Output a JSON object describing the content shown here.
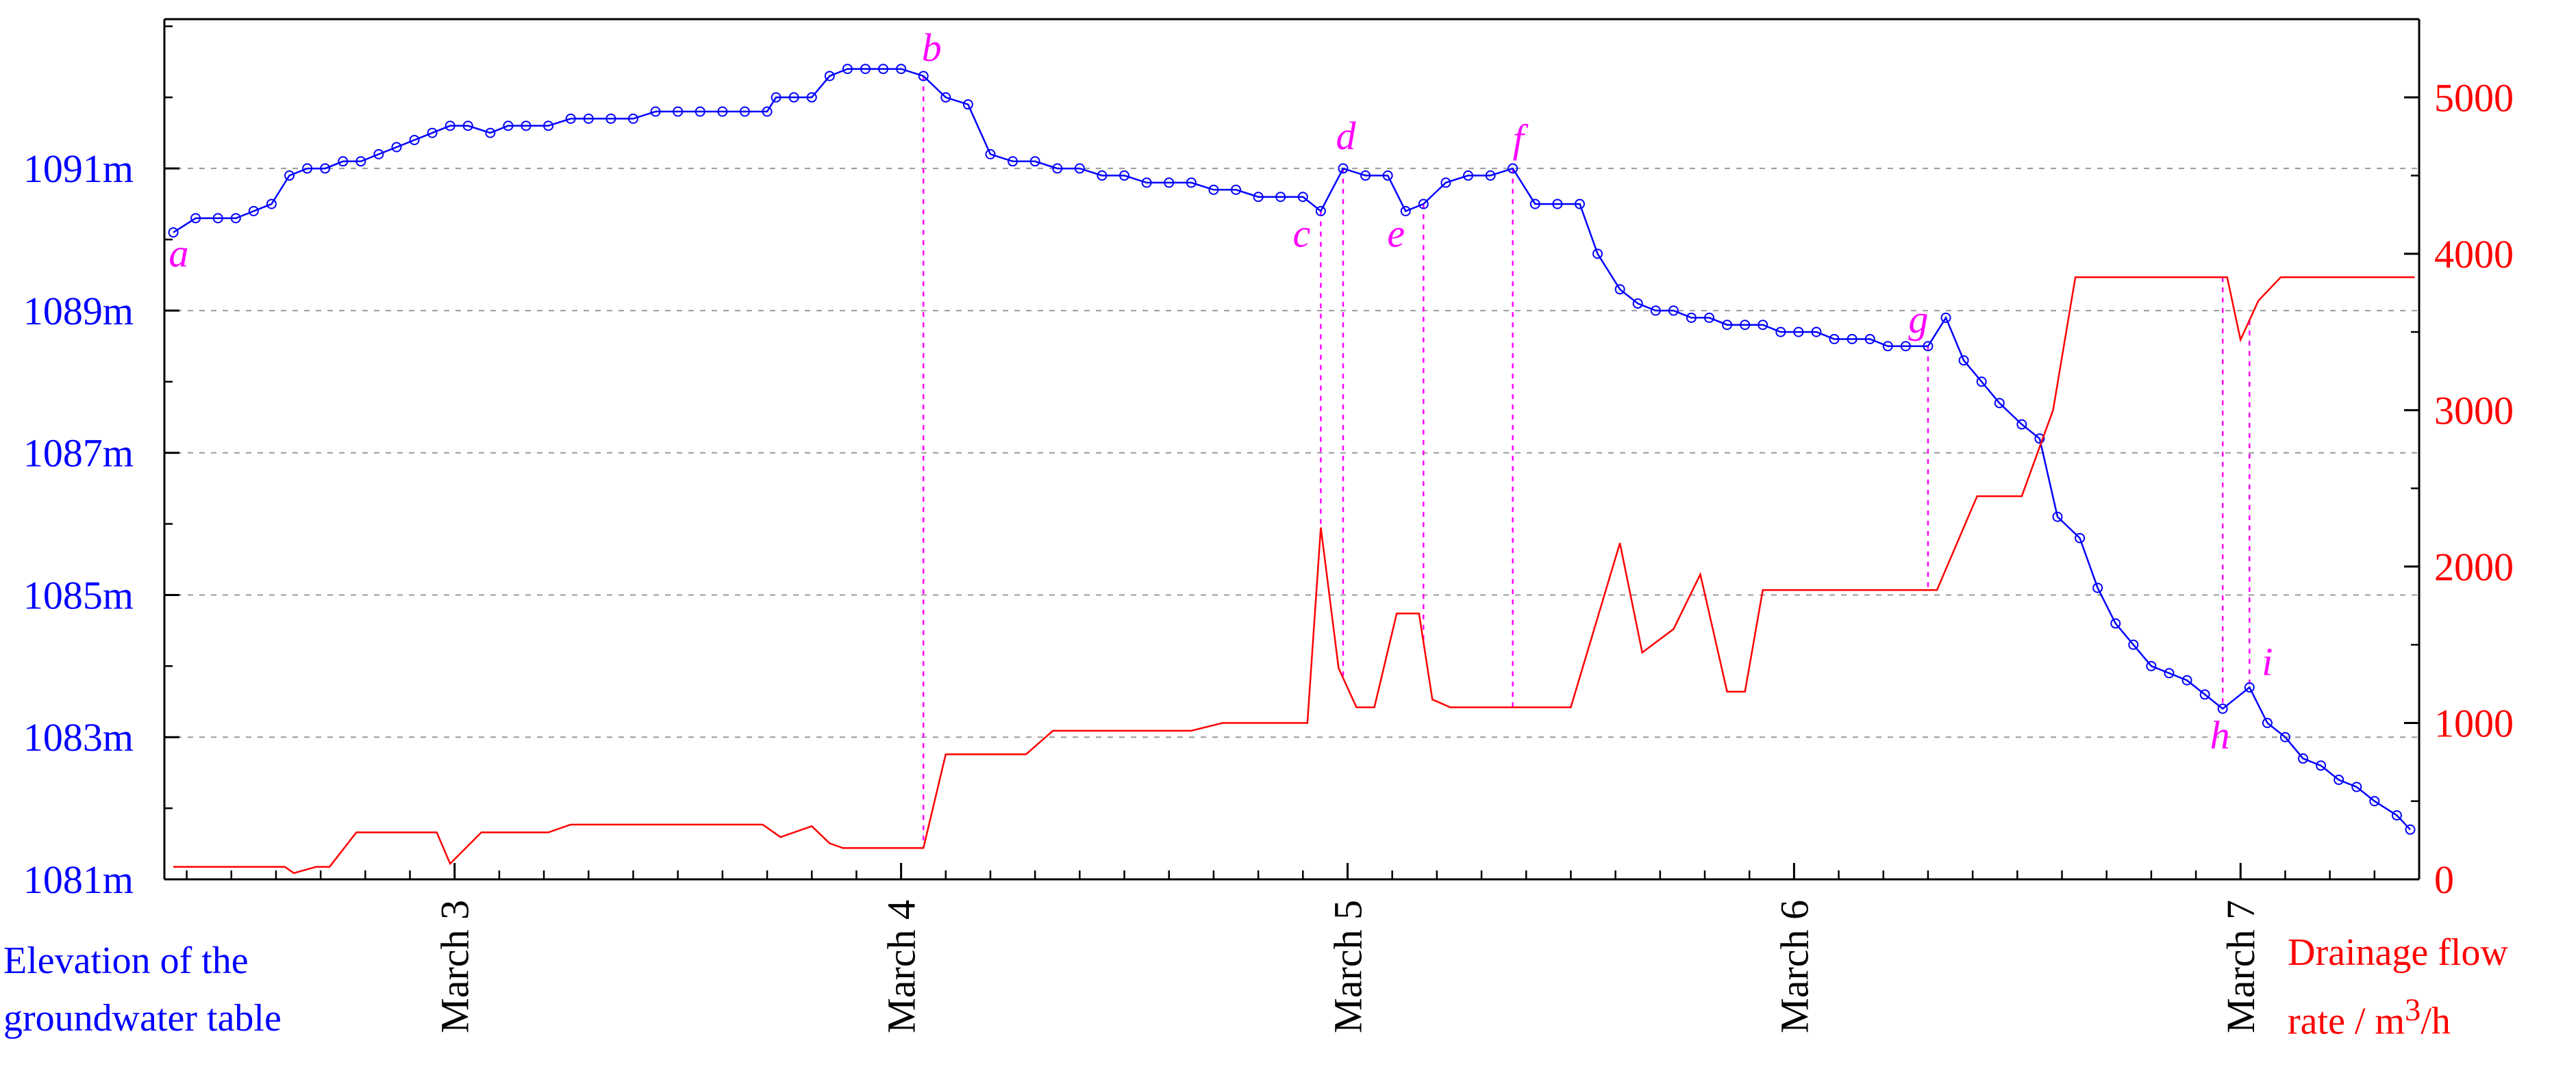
{
  "chart_data": {
    "type": "line",
    "x_axis": {
      "ticks": [
        "March 3",
        "March 4",
        "March 5",
        "March 6",
        "March 7"
      ],
      "tick_values": [
        3,
        4,
        5,
        6,
        7
      ],
      "range": [
        2.35,
        7.4
      ]
    },
    "y_left": {
      "title_lines": [
        "Elevation of the",
        "groundwater table"
      ],
      "ticks": [
        "1081m",
        "1083m",
        "1085m",
        "1087m",
        "1089m",
        "1091m"
      ],
      "tick_values": [
        1081,
        1083,
        1085,
        1087,
        1089,
        1091
      ],
      "range": [
        1081,
        1093.1
      ],
      "color": "#0000ff"
    },
    "y_right": {
      "title_html": "Drainage flow<br>rate / m<sup>3</sup>/h",
      "ticks": [
        "0",
        "1000",
        "2000",
        "3000",
        "4000",
        "5000"
      ],
      "tick_values": [
        0,
        1000,
        2000,
        3000,
        4000,
        5000
      ],
      "range": [
        0,
        5500
      ],
      "color": "#ff0000"
    },
    "grid": {
      "horizontal": true,
      "style": "dashed",
      "at_left_values": [
        1083,
        1085,
        1087,
        1089,
        1091
      ]
    },
    "series": [
      {
        "axis": "left",
        "color": "#0000ff",
        "marker": "circle",
        "points": [
          [
            2.37,
            1090.1
          ],
          [
            2.42,
            1090.3
          ],
          [
            2.47,
            1090.3
          ],
          [
            2.51,
            1090.3
          ],
          [
            2.55,
            1090.4
          ],
          [
            2.59,
            1090.5
          ],
          [
            2.63,
            1090.9
          ],
          [
            2.67,
            1091.0
          ],
          [
            2.71,
            1091.0
          ],
          [
            2.75,
            1091.1
          ],
          [
            2.79,
            1091.1
          ],
          [
            2.83,
            1091.2
          ],
          [
            2.87,
            1091.3
          ],
          [
            2.91,
            1091.4
          ],
          [
            2.95,
            1091.5
          ],
          [
            2.99,
            1091.6
          ],
          [
            3.03,
            1091.6
          ],
          [
            3.08,
            1091.5
          ],
          [
            3.12,
            1091.6
          ],
          [
            3.16,
            1091.6
          ],
          [
            3.21,
            1091.6
          ],
          [
            3.26,
            1091.7
          ],
          [
            3.3,
            1091.7
          ],
          [
            3.35,
            1091.7
          ],
          [
            3.4,
            1091.7
          ],
          [
            3.45,
            1091.8
          ],
          [
            3.5,
            1091.8
          ],
          [
            3.55,
            1091.8
          ],
          [
            3.6,
            1091.8
          ],
          [
            3.65,
            1091.8
          ],
          [
            3.7,
            1091.8
          ],
          [
            3.72,
            1092.0
          ],
          [
            3.76,
            1092.0
          ],
          [
            3.8,
            1092.0
          ],
          [
            3.84,
            1092.3
          ],
          [
            3.88,
            1092.4
          ],
          [
            3.92,
            1092.4
          ],
          [
            3.96,
            1092.4
          ],
          [
            4.0,
            1092.4
          ],
          [
            4.05,
            1092.3
          ],
          [
            4.1,
            1092.0
          ],
          [
            4.15,
            1091.9
          ],
          [
            4.2,
            1091.2
          ],
          [
            4.25,
            1091.1
          ],
          [
            4.3,
            1091.1
          ],
          [
            4.35,
            1091.0
          ],
          [
            4.4,
            1091.0
          ],
          [
            4.45,
            1090.9
          ],
          [
            4.5,
            1090.9
          ],
          [
            4.55,
            1090.8
          ],
          [
            4.6,
            1090.8
          ],
          [
            4.65,
            1090.8
          ],
          [
            4.7,
            1090.7
          ],
          [
            4.75,
            1090.7
          ],
          [
            4.8,
            1090.6
          ],
          [
            4.85,
            1090.6
          ],
          [
            4.9,
            1090.6
          ],
          [
            4.94,
            1090.4
          ],
          [
            4.99,
            1091.0
          ],
          [
            5.04,
            1090.9
          ],
          [
            5.09,
            1090.9
          ],
          [
            5.13,
            1090.4
          ],
          [
            5.17,
            1090.5
          ],
          [
            5.22,
            1090.8
          ],
          [
            5.27,
            1090.9
          ],
          [
            5.32,
            1090.9
          ],
          [
            5.37,
            1091.0
          ],
          [
            5.42,
            1090.5
          ],
          [
            5.47,
            1090.5
          ],
          [
            5.52,
            1090.5
          ],
          [
            5.56,
            1089.8
          ],
          [
            5.61,
            1089.3
          ],
          [
            5.65,
            1089.1
          ],
          [
            5.69,
            1089.0
          ],
          [
            5.73,
            1089.0
          ],
          [
            5.77,
            1088.9
          ],
          [
            5.81,
            1088.9
          ],
          [
            5.85,
            1088.8
          ],
          [
            5.89,
            1088.8
          ],
          [
            5.93,
            1088.8
          ],
          [
            5.97,
            1088.7
          ],
          [
            6.01,
            1088.7
          ],
          [
            6.05,
            1088.7
          ],
          [
            6.09,
            1088.6
          ],
          [
            6.13,
            1088.6
          ],
          [
            6.17,
            1088.6
          ],
          [
            6.21,
            1088.5
          ],
          [
            6.25,
            1088.5
          ],
          [
            6.3,
            1088.5
          ],
          [
            6.34,
            1088.9
          ],
          [
            6.38,
            1088.3
          ],
          [
            6.42,
            1088.0
          ],
          [
            6.46,
            1087.7
          ],
          [
            6.51,
            1087.4
          ],
          [
            6.55,
            1087.2
          ],
          [
            6.59,
            1086.1
          ],
          [
            6.64,
            1085.8
          ],
          [
            6.68,
            1085.1
          ],
          [
            6.72,
            1084.6
          ],
          [
            6.76,
            1084.3
          ],
          [
            6.8,
            1084.0
          ],
          [
            6.84,
            1083.9
          ],
          [
            6.88,
            1083.8
          ],
          [
            6.92,
            1083.6
          ],
          [
            6.96,
            1083.4
          ],
          [
            7.02,
            1083.7
          ],
          [
            7.06,
            1083.2
          ],
          [
            7.1,
            1083.0
          ],
          [
            7.14,
            1082.7
          ],
          [
            7.18,
            1082.6
          ],
          [
            7.22,
            1082.4
          ],
          [
            7.26,
            1082.3
          ],
          [
            7.3,
            1082.1
          ],
          [
            7.35,
            1081.9
          ],
          [
            7.38,
            1081.7
          ]
        ]
      },
      {
        "axis": "right",
        "color": "#ff0000",
        "marker": "none",
        "points": [
          [
            2.37,
            80
          ],
          [
            2.62,
            80
          ],
          [
            2.64,
            40
          ],
          [
            2.69,
            80
          ],
          [
            2.72,
            80
          ],
          [
            2.78,
            300
          ],
          [
            2.96,
            300
          ],
          [
            2.99,
            100
          ],
          [
            3.06,
            300
          ],
          [
            3.21,
            300
          ],
          [
            3.26,
            350
          ],
          [
            3.69,
            350
          ],
          [
            3.73,
            270
          ],
          [
            3.8,
            340
          ],
          [
            3.84,
            230
          ],
          [
            3.87,
            200
          ],
          [
            4.05,
            200
          ],
          [
            4.1,
            800
          ],
          [
            4.28,
            800
          ],
          [
            4.34,
            950
          ],
          [
            4.65,
            950
          ],
          [
            4.72,
            1000
          ],
          [
            4.91,
            1000
          ],
          [
            4.94,
            2250
          ],
          [
            4.98,
            1350
          ],
          [
            5.02,
            1100
          ],
          [
            5.06,
            1100
          ],
          [
            5.11,
            1700
          ],
          [
            5.16,
            1700
          ],
          [
            5.19,
            1150
          ],
          [
            5.23,
            1100
          ],
          [
            5.5,
            1100
          ],
          [
            5.61,
            2150
          ],
          [
            5.66,
            1450
          ],
          [
            5.73,
            1600
          ],
          [
            5.79,
            1950
          ],
          [
            5.85,
            1200
          ],
          [
            5.89,
            1200
          ],
          [
            5.93,
            1850
          ],
          [
            6.32,
            1850
          ],
          [
            6.41,
            2450
          ],
          [
            6.51,
            2450
          ],
          [
            6.58,
            3000
          ],
          [
            6.63,
            3850
          ],
          [
            6.97,
            3850
          ],
          [
            7.0,
            3450
          ],
          [
            7.04,
            3700
          ],
          [
            7.09,
            3850
          ],
          [
            7.39,
            3850
          ]
        ]
      }
    ],
    "annotations": [
      {
        "label": "a",
        "x": 2.37,
        "y": 1090.1
      },
      {
        "label": "b",
        "x": 4.05,
        "y": 1092.3
      },
      {
        "label": "c",
        "x": 4.94,
        "y": 1090.4
      },
      {
        "label": "d",
        "x": 4.99,
        "y": 1091.0
      },
      {
        "label": "e",
        "x": 5.13,
        "y": 1090.4
      },
      {
        "label": "f",
        "x": 5.37,
        "y": 1091.0
      },
      {
        "label": "g",
        "x": 6.3,
        "y": 1088.5
      },
      {
        "label": "h",
        "x": 6.96,
        "y": 1083.4
      },
      {
        "label": "i",
        "x": 7.02,
        "y": 1083.7
      }
    ],
    "annotation_color": "#ff00ff",
    "vertical_guides_x": [
      4.05,
      4.94,
      4.99,
      5.17,
      5.37,
      6.3,
      6.96,
      7.02
    ]
  }
}
